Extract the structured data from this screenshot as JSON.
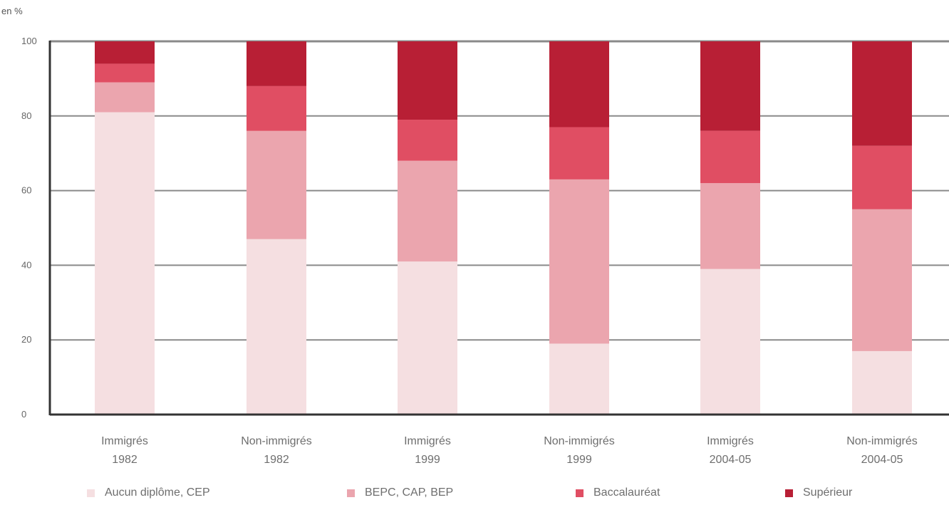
{
  "chart_data": {
    "type": "bar",
    "stacked": true,
    "unit_label": "en %",
    "ylim": [
      0,
      100
    ],
    "yticks": [
      "0",
      "20",
      "40",
      "60",
      "80",
      "100"
    ],
    "grid": true,
    "legend_position": "bottom",
    "categories": [
      [
        "Immigrés",
        "1982"
      ],
      [
        "Non-immigrés",
        "1982"
      ],
      [
        "Immigrés",
        "1999"
      ],
      [
        "Non-immigrés",
        "1999"
      ],
      [
        "Immigrés",
        "2004-05"
      ],
      [
        "Non-immigrés",
        "2004-05"
      ]
    ],
    "series": [
      {
        "name": "Aucun diplôme, CEP",
        "color": "#f5dfe1",
        "values": [
          81,
          47,
          41,
          19,
          39,
          17
        ]
      },
      {
        "name": "BEPC, CAP, BEP",
        "color": "#eba5ae",
        "values": [
          8,
          29,
          27,
          44,
          23,
          38
        ]
      },
      {
        "name": "Baccalauréat",
        "color": "#e04e63",
        "values": [
          5,
          12,
          11,
          14,
          14,
          17
        ]
      },
      {
        "name": "Supérieur",
        "color": "#b81f35",
        "values": [
          6,
          12,
          21,
          23,
          24,
          28
        ]
      }
    ]
  }
}
